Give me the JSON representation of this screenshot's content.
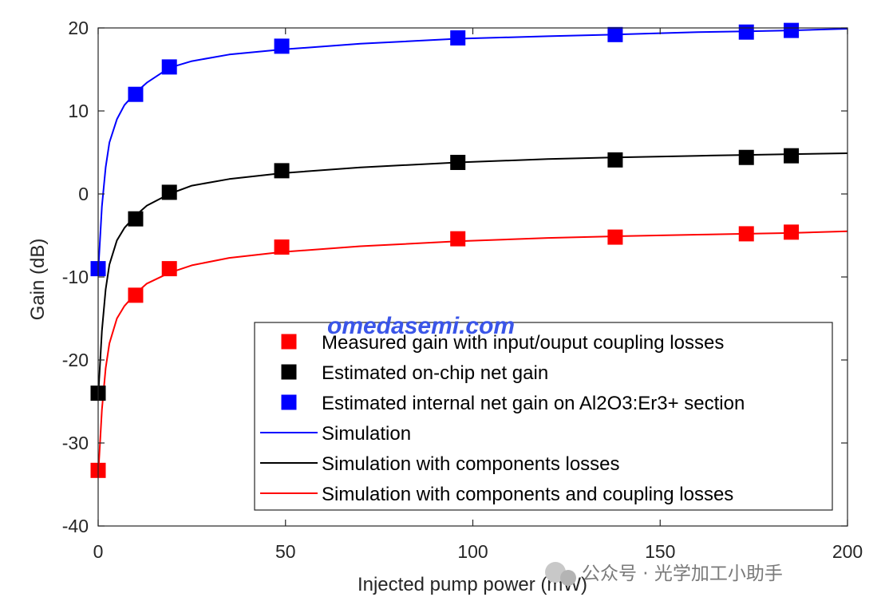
{
  "chart_data": {
    "type": "line",
    "title": "",
    "xlabel": "Injected pump power (mW)",
    "ylabel": "Gain (dB)",
    "xlim": [
      0,
      200
    ],
    "ylim": [
      -40,
      20
    ],
    "xticks": [
      0,
      50,
      100,
      150,
      200
    ],
    "yticks": [
      -40,
      -30,
      -20,
      -10,
      0,
      10,
      20
    ],
    "grid": true,
    "legend_position": "bottom-right",
    "marker_series": [
      {
        "name": "Measured gain with input/ouput coupling losses",
        "color": "#ff0000",
        "x": [
          0,
          10,
          19,
          49,
          96,
          138,
          173,
          185
        ],
        "y": [
          -33.3,
          -12.2,
          -9.0,
          -6.4,
          -5.4,
          -5.2,
          -4.8,
          -4.6
        ]
      },
      {
        "name": "Estimated on-chip net gain",
        "color": "#000000",
        "x": [
          0,
          10,
          19,
          49,
          96,
          138,
          173,
          185
        ],
        "y": [
          -24.0,
          -3.0,
          0.2,
          2.8,
          3.8,
          4.1,
          4.4,
          4.6
        ]
      },
      {
        "name": "Estimated internal net gain on Al2O3:Er3+ section",
        "color": "#0000ff",
        "x": [
          0,
          10,
          19,
          49,
          96,
          138,
          173,
          185
        ],
        "y": [
          -9.0,
          12.0,
          15.3,
          17.8,
          18.8,
          19.2,
          19.5,
          19.7
        ]
      }
    ],
    "line_series": [
      {
        "name": "Simulation",
        "color": "#0000ff",
        "x": [
          0,
          1,
          2,
          3,
          5,
          7,
          10,
          13,
          19,
          25,
          35,
          49,
          70,
          96,
          120,
          138,
          160,
          173,
          185,
          200
        ],
        "y": [
          -9.5,
          -1.5,
          3.2,
          6.2,
          9.0,
          10.7,
          12.2,
          13.4,
          15.2,
          16.0,
          16.8,
          17.4,
          18.1,
          18.7,
          19.0,
          19.2,
          19.5,
          19.6,
          19.7,
          19.9
        ]
      },
      {
        "name": "Simulation with components losses",
        "color": "#000000",
        "x": [
          0,
          1,
          2,
          3,
          5,
          7,
          10,
          13,
          19,
          25,
          35,
          49,
          70,
          96,
          120,
          138,
          160,
          173,
          185,
          200
        ],
        "y": [
          -24.5,
          -16.5,
          -11.5,
          -8.5,
          -5.6,
          -4.1,
          -2.6,
          -1.4,
          0.0,
          1.0,
          1.8,
          2.5,
          3.2,
          3.8,
          4.2,
          4.4,
          4.6,
          4.7,
          4.8,
          4.9
        ]
      },
      {
        "name": "Simulation with components and coupling losses",
        "color": "#ff0000",
        "x": [
          0,
          1,
          2,
          3,
          5,
          7,
          10,
          13,
          19,
          25,
          35,
          49,
          70,
          96,
          120,
          138,
          160,
          173,
          185,
          200
        ],
        "y": [
          -34.0,
          -26.0,
          -21.0,
          -18.0,
          -15.0,
          -13.5,
          -12.0,
          -10.8,
          -9.5,
          -8.6,
          -7.7,
          -7.0,
          -6.3,
          -5.7,
          -5.3,
          -5.1,
          -4.9,
          -4.8,
          -4.7,
          -4.5
        ]
      }
    ]
  },
  "watermark": {
    "text": "omedasemi.com",
    "wechat_text": "公众号 · 光学加工小助手"
  }
}
